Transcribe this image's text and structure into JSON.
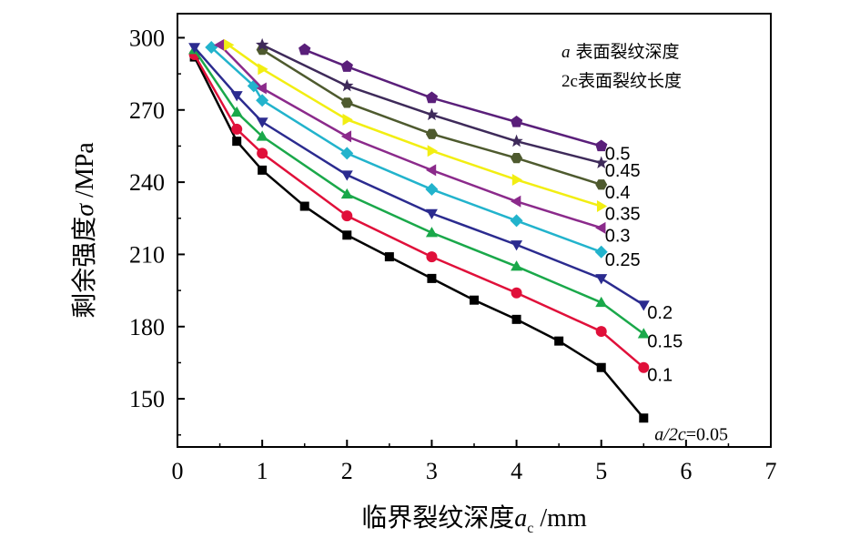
{
  "chart_data": {
    "type": "line",
    "xlabel_main": "临界裂纹深度",
    "xlabel_var": "a",
    "xlabel_sub": "c",
    "xlabel_unit": " /mm",
    "ylabel_main": "剩余强度",
    "ylabel_var": "σ",
    "ylabel_unit": " /MPa",
    "xlim": [
      0,
      7
    ],
    "ylim": [
      130,
      310
    ],
    "xticks": [
      0,
      1,
      2,
      3,
      4,
      5,
      6,
      7
    ],
    "yticks": [
      150,
      180,
      210,
      240,
      270,
      300
    ],
    "legend": {
      "line1_var": "a",
      "line1_text": " 表面裂纹深度",
      "line2_var": "2c",
      "line2_text": "表面裂纹长度"
    },
    "series": [
      {
        "name": "a/2c=0.05",
        "label_var": "a/2c",
        "label_rest": "=0.05",
        "color": "#000000",
        "marker": "square",
        "x": [
          0.2,
          0.7,
          1.0,
          1.5,
          2.0,
          2.5,
          3.0,
          3.5,
          4.0,
          4.5,
          5.0,
          5.5
        ],
        "y": [
          292,
          257,
          245,
          230,
          218,
          209,
          200,
          191,
          183,
          174,
          163,
          142
        ]
      },
      {
        "name": "0.1",
        "color": "#e0103a",
        "marker": "circle",
        "x": [
          0.2,
          0.7,
          1.0,
          2.0,
          3.0,
          4.0,
          5.0,
          5.5
        ],
        "y": [
          293,
          262,
          252,
          226,
          209,
          194,
          178,
          163
        ]
      },
      {
        "name": "0.15",
        "color": "#1aa84a",
        "marker": "triangle-up",
        "x": [
          0.2,
          0.7,
          1.0,
          2.0,
          3.0,
          4.0,
          5.0,
          5.5
        ],
        "y": [
          295,
          269,
          259,
          235,
          219,
          205,
          190,
          177
        ]
      },
      {
        "name": "0.2",
        "color": "#2b2b8f",
        "marker": "triangle-down",
        "x": [
          0.2,
          0.7,
          1.0,
          2.0,
          3.0,
          4.0,
          5.0,
          5.5
        ],
        "y": [
          296,
          276,
          265,
          243,
          227,
          214,
          200,
          189
        ]
      },
      {
        "name": "0.25",
        "color": "#22b3cc",
        "marker": "diamond",
        "x": [
          0.4,
          0.9,
          1.0,
          2.0,
          3.0,
          4.0,
          5.0
        ],
        "y": [
          296,
          280,
          274,
          252,
          237,
          224,
          211
        ]
      },
      {
        "name": "0.3",
        "color": "#8b2a8b",
        "marker": "triangle-left",
        "x": [
          0.5,
          1.0,
          2.0,
          3.0,
          4.0,
          5.0
        ],
        "y": [
          297,
          279,
          259,
          245,
          232,
          221
        ]
      },
      {
        "name": "0.35",
        "color": "#f2ee12",
        "marker": "triangle-right",
        "x": [
          0.6,
          1.0,
          2.0,
          3.0,
          4.0,
          5.0
        ],
        "y": [
          297,
          287,
          266,
          253,
          241,
          230
        ]
      },
      {
        "name": "0.4",
        "color": "#4e5a2e",
        "marker": "hexagon",
        "x": [
          1.0,
          2.0,
          3.0,
          4.0,
          5.0
        ],
        "y": [
          295,
          273,
          260,
          250,
          239
        ]
      },
      {
        "name": "0.45",
        "color": "#3e2a5a",
        "marker": "star",
        "x": [
          1.0,
          2.0,
          3.0,
          4.0,
          5.0
        ],
        "y": [
          297,
          280,
          268,
          257,
          248
        ]
      },
      {
        "name": "0.5",
        "color": "#5a1f7a",
        "marker": "pentagon",
        "x": [
          1.5,
          2.0,
          3.0,
          4.0,
          5.0
        ],
        "y": [
          295,
          288,
          275,
          265,
          255
        ]
      }
    ]
  }
}
